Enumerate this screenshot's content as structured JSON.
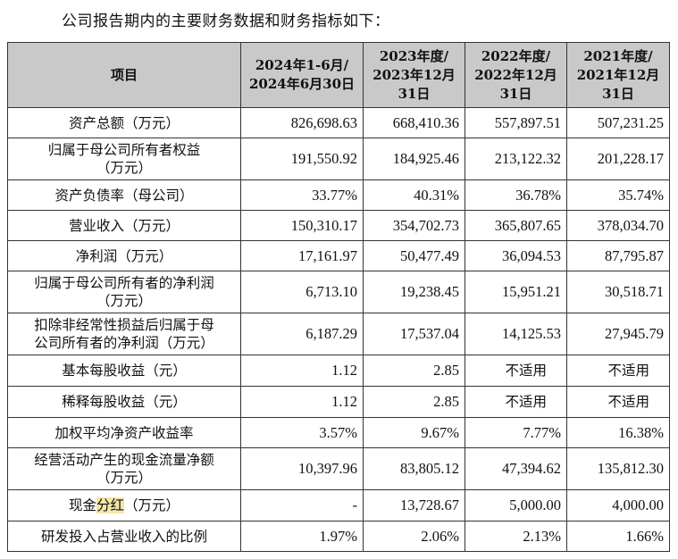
{
  "intro": "公司报告期内的主要财务数据和财务指标如下：",
  "header": {
    "item": "项目",
    "c1": [
      "2024年1-6月/",
      "2024年6月30日"
    ],
    "c2": [
      "2023年度/",
      "2023年12月",
      "31日"
    ],
    "c3": [
      "2022年度/",
      "2022年12月",
      "31日"
    ],
    "c4": [
      "2021年度/",
      "2021年12月",
      "31日"
    ]
  },
  "rows": [
    {
      "label": [
        "资产总额（万元）"
      ],
      "v": [
        "826,698.63",
        "668,410.36",
        "557,897.51",
        "507,231.25"
      ]
    },
    {
      "label": [
        "归属于母公司所有者权益",
        "（万元）"
      ],
      "v": [
        "191,550.92",
        "184,925.46",
        "213,122.32",
        "201,228.17"
      ]
    },
    {
      "label": [
        "资产负债率（母公司）"
      ],
      "v": [
        "33.77%",
        "40.31%",
        "36.78%",
        "35.74%"
      ]
    },
    {
      "label": [
        "营业收入（万元）"
      ],
      "v": [
        "150,310.17",
        "354,702.73",
        "365,807.65",
        "378,034.70"
      ]
    },
    {
      "label": [
        "净利润（万元）"
      ],
      "v": [
        "17,161.97",
        "50,477.49",
        "36,094.53",
        "87,795.87"
      ]
    },
    {
      "label": [
        "归属于母公司所有者的净利润",
        "（万元）"
      ],
      "v": [
        "6,713.10",
        "19,238.45",
        "15,951.21",
        "30,518.71"
      ]
    },
    {
      "label": [
        "扣除非经常性损益后归属于母",
        "公司所有者的净利润（万元）"
      ],
      "v": [
        "6,187.29",
        "17,537.04",
        "14,125.53",
        "27,945.79"
      ]
    },
    {
      "label": [
        "基本每股收益（元）"
      ],
      "v": [
        "1.12",
        "2.85",
        "不适用",
        "不适用"
      ]
    },
    {
      "label": [
        "稀释每股收益（元）"
      ],
      "v": [
        "1.12",
        "2.85",
        "不适用",
        "不适用"
      ]
    },
    {
      "label": [
        "加权平均净资产收益率"
      ],
      "v": [
        "3.57%",
        "9.67%",
        "7.77%",
        "16.38%"
      ]
    },
    {
      "label": [
        "经营活动产生的现金流量净额",
        "（万元）"
      ],
      "v": [
        "10,397.96",
        "83,805.12",
        "47,394.62",
        "135,812.30"
      ]
    },
    {
      "label_parts": [
        "现金",
        "分红",
        "（万元）"
      ],
      "v": [
        "-",
        "13,728.67",
        "5,000.00",
        "4,000.00"
      ]
    },
    {
      "label": [
        "研发投入占营业收入的比例"
      ],
      "v": [
        "1.97%",
        "2.06%",
        "2.13%",
        "1.66%"
      ]
    }
  ]
}
